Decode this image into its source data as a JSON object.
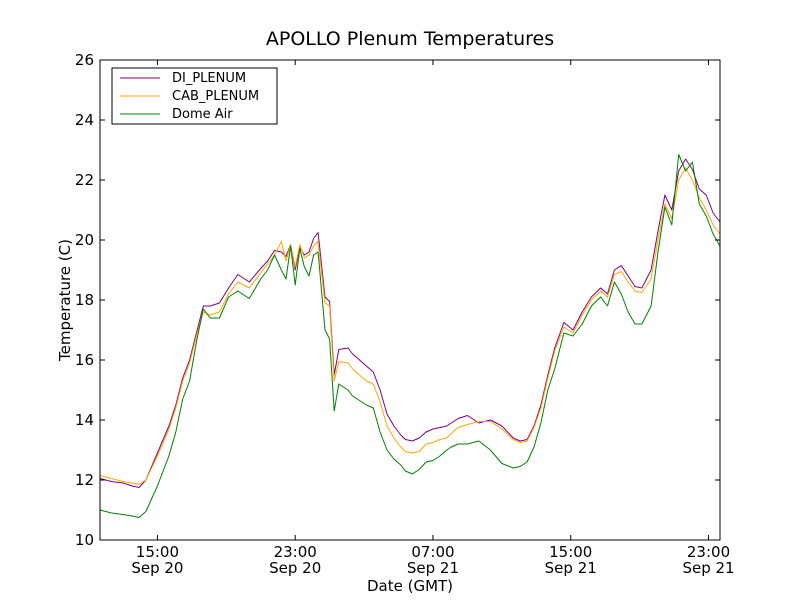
{
  "chart_data": {
    "type": "line",
    "title": "APOLLO Plenum Temperatures",
    "xlabel": "Date (GMT)",
    "ylabel": "Temperature (C)",
    "ylim": [
      10,
      26
    ],
    "yticks": [
      10,
      12,
      14,
      16,
      18,
      20,
      22,
      24,
      26
    ],
    "xlim": [
      0,
      27
    ],
    "xticks": [
      {
        "x": 2.5,
        "time": "15:00",
        "date": "Sep 20"
      },
      {
        "x": 8.5,
        "time": "23:00",
        "date": "Sep 20"
      },
      {
        "x": 14.5,
        "time": "07:00",
        "date": "Sep 21"
      },
      {
        "x": 20.5,
        "time": "15:00",
        "date": "Sep 21"
      },
      {
        "x": 26.5,
        "time": "23:00",
        "date": "Sep 21"
      }
    ],
    "legend_position": "top-left",
    "series": [
      {
        "name": "DI_PLENUM",
        "color": "#800080",
        "x": [
          0,
          0.5,
          1,
          1.4,
          1.7,
          2,
          2.5,
          3,
          3.3,
          3.6,
          3.9,
          4.2,
          4.5,
          4.8,
          5.2,
          5.6,
          6,
          6.5,
          7,
          7.3,
          7.6,
          7.9,
          8.1,
          8.3,
          8.5,
          8.7,
          8.9,
          9.1,
          9.3,
          9.5,
          9.8,
          10,
          10.2,
          10.4,
          10.8,
          11,
          11.3,
          11.6,
          11.9,
          12.2,
          12.5,
          12.8,
          13.1,
          13.3,
          13.6,
          13.9,
          14.2,
          14.5,
          14.8,
          15.1,
          15.3,
          15.6,
          16,
          16.5,
          17,
          17.5,
          18,
          18.3,
          18.6,
          18.9,
          19.2,
          19.5,
          19.8,
          20.2,
          20.6,
          21,
          21.4,
          21.8,
          22.1,
          22.4,
          22.7,
          23,
          23.3,
          23.6,
          24,
          24.3,
          24.6,
          24.9,
          25.2,
          25.5,
          25.8,
          26.1,
          26.4,
          26.7,
          27
        ],
        "y": [
          12.05,
          11.95,
          11.9,
          11.8,
          11.75,
          12.0,
          12.9,
          13.8,
          14.5,
          15.4,
          16.0,
          16.9,
          17.8,
          17.8,
          17.9,
          18.4,
          18.85,
          18.6,
          19.05,
          19.3,
          19.65,
          19.6,
          19.45,
          19.85,
          19.0,
          19.75,
          19.5,
          19.6,
          20.05,
          20.25,
          18.1,
          17.95,
          15.5,
          16.35,
          16.4,
          16.2,
          16.0,
          15.8,
          15.6,
          15.0,
          14.2,
          13.8,
          13.5,
          13.35,
          13.3,
          13.4,
          13.6,
          13.7,
          13.75,
          13.8,
          13.9,
          14.05,
          14.15,
          13.9,
          14.0,
          13.8,
          13.4,
          13.3,
          13.35,
          13.8,
          14.5,
          15.5,
          16.4,
          17.25,
          17.0,
          17.6,
          18.1,
          18.4,
          18.2,
          19.0,
          19.15,
          18.8,
          18.45,
          18.4,
          19.0,
          20.3,
          21.5,
          21.0,
          22.3,
          22.7,
          22.35,
          21.7,
          21.5,
          20.9,
          20.6
        ]
      },
      {
        "name": "CAB_PLENUM",
        "color": "#ffa500",
        "x": [
          0,
          0.5,
          1,
          1.4,
          1.7,
          2,
          2.5,
          3,
          3.3,
          3.6,
          3.9,
          4.2,
          4.5,
          4.8,
          5.2,
          5.6,
          6,
          6.5,
          7,
          7.3,
          7.6,
          7.9,
          8.1,
          8.3,
          8.5,
          8.7,
          8.9,
          9.1,
          9.3,
          9.5,
          9.8,
          10,
          10.2,
          10.4,
          10.8,
          11,
          11.3,
          11.6,
          11.9,
          12.2,
          12.5,
          12.8,
          13.1,
          13.3,
          13.6,
          13.9,
          14.2,
          14.5,
          14.8,
          15.1,
          15.3,
          15.6,
          16,
          16.5,
          17,
          17.5,
          18,
          18.3,
          18.6,
          18.9,
          19.2,
          19.5,
          19.8,
          20.2,
          20.6,
          21,
          21.4,
          21.8,
          22.1,
          22.4,
          22.7,
          23,
          23.3,
          23.6,
          24,
          24.3,
          24.6,
          24.9,
          25.2,
          25.5,
          25.8,
          26.1,
          26.4,
          26.7,
          27
        ],
        "y": [
          12.15,
          12.05,
          11.95,
          11.9,
          11.85,
          12.0,
          12.8,
          13.7,
          14.4,
          15.3,
          15.9,
          16.8,
          17.6,
          17.5,
          17.6,
          18.2,
          18.6,
          18.4,
          18.9,
          19.2,
          19.5,
          19.95,
          19.3,
          19.85,
          19.1,
          19.85,
          19.4,
          19.5,
          19.8,
          19.95,
          17.9,
          17.8,
          15.3,
          15.95,
          15.9,
          15.7,
          15.5,
          15.3,
          15.2,
          14.6,
          13.8,
          13.4,
          13.1,
          12.95,
          12.9,
          12.95,
          13.2,
          13.25,
          13.35,
          13.4,
          13.55,
          13.75,
          13.85,
          13.95,
          13.95,
          13.7,
          13.35,
          13.25,
          13.3,
          13.75,
          14.4,
          15.4,
          16.3,
          17.1,
          16.9,
          17.5,
          18.0,
          18.3,
          18.1,
          18.85,
          18.95,
          18.6,
          18.3,
          18.25,
          18.7,
          20.0,
          21.2,
          20.7,
          22.0,
          22.4,
          22.0,
          21.4,
          21.0,
          20.5,
          20.2
        ]
      },
      {
        "name": "Dome Air",
        "color": "#008000",
        "x": [
          0,
          0.5,
          1,
          1.4,
          1.7,
          2,
          2.5,
          3,
          3.3,
          3.6,
          3.9,
          4.2,
          4.5,
          4.8,
          5.2,
          5.6,
          6,
          6.5,
          7,
          7.3,
          7.6,
          7.9,
          8.1,
          8.3,
          8.5,
          8.7,
          8.9,
          9.1,
          9.3,
          9.5,
          9.8,
          10,
          10.2,
          10.4,
          10.8,
          11,
          11.3,
          11.6,
          11.9,
          12.2,
          12.5,
          12.8,
          13.1,
          13.3,
          13.6,
          13.9,
          14.2,
          14.5,
          14.8,
          15.1,
          15.3,
          15.6,
          16,
          16.5,
          17,
          17.5,
          18,
          18.3,
          18.6,
          18.9,
          19.2,
          19.5,
          19.8,
          20.2,
          20.6,
          21,
          21.4,
          21.8,
          22.1,
          22.4,
          22.7,
          23,
          23.3,
          23.6,
          24,
          24.3,
          24.6,
          24.9,
          25.2,
          25.5,
          25.8,
          26.1,
          26.4,
          26.7,
          27
        ],
        "y": [
          11.0,
          10.9,
          10.85,
          10.8,
          10.75,
          10.95,
          11.8,
          12.8,
          13.6,
          14.7,
          15.3,
          16.6,
          17.7,
          17.4,
          17.4,
          18.1,
          18.3,
          18.05,
          18.7,
          19.0,
          19.5,
          19.0,
          18.7,
          19.8,
          18.5,
          19.7,
          19.1,
          18.8,
          19.5,
          19.6,
          17.0,
          16.7,
          14.3,
          15.2,
          15.0,
          14.8,
          14.65,
          14.5,
          14.4,
          13.6,
          13.0,
          12.7,
          12.5,
          12.3,
          12.2,
          12.35,
          12.6,
          12.65,
          12.8,
          13.0,
          13.1,
          13.2,
          13.2,
          13.3,
          13.0,
          12.55,
          12.4,
          12.45,
          12.6,
          13.1,
          13.9,
          15.0,
          15.7,
          16.9,
          16.8,
          17.2,
          17.8,
          18.1,
          17.8,
          18.6,
          18.2,
          17.6,
          17.2,
          17.2,
          17.8,
          19.6,
          21.1,
          20.5,
          22.85,
          22.3,
          22.6,
          21.2,
          20.8,
          20.2,
          19.8
        ]
      }
    ]
  }
}
